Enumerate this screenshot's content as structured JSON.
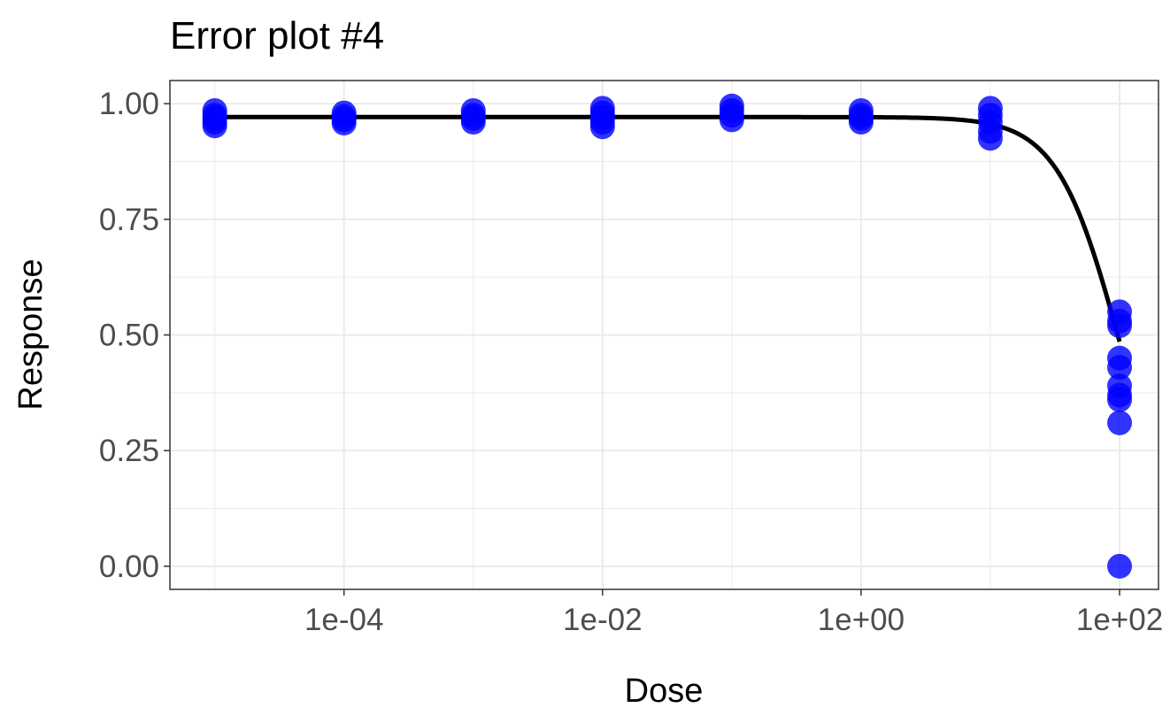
{
  "chart_data": {
    "type": "scatter",
    "title": "Error plot #4",
    "xlabel": "Dose",
    "ylabel": "Response",
    "x_scale": "log10",
    "xlim": [
      4.5e-06,
      200
    ],
    "ylim": [
      -0.05,
      1.05
    ],
    "grid": true,
    "legend": "none",
    "x_ticks": [
      {
        "value": 0.0001,
        "label": "1e-04"
      },
      {
        "value": 0.01,
        "label": "1e-02"
      },
      {
        "value": 1,
        "label": "1e+00"
      },
      {
        "value": 100,
        "label": "1e+02"
      }
    ],
    "y_ticks": [
      {
        "value": 0.0,
        "label": "0.00"
      },
      {
        "value": 0.25,
        "label": "0.25"
      },
      {
        "value": 0.5,
        "label": "0.50"
      },
      {
        "value": 0.75,
        "label": "0.75"
      },
      {
        "value": 1.0,
        "label": "1.00"
      }
    ],
    "points": [
      {
        "x": 1e-05,
        "y": 0.985
      },
      {
        "x": 1e-05,
        "y": 0.975
      },
      {
        "x": 1e-05,
        "y": 0.968
      },
      {
        "x": 1e-05,
        "y": 0.96
      },
      {
        "x": 1e-05,
        "y": 0.952
      },
      {
        "x": 0.0001,
        "y": 0.98
      },
      {
        "x": 0.0001,
        "y": 0.972
      },
      {
        "x": 0.0001,
        "y": 0.965
      },
      {
        "x": 0.0001,
        "y": 0.958
      },
      {
        "x": 0.001,
        "y": 0.985
      },
      {
        "x": 0.001,
        "y": 0.975
      },
      {
        "x": 0.001,
        "y": 0.968
      },
      {
        "x": 0.001,
        "y": 0.96
      },
      {
        "x": 0.01,
        "y": 0.99
      },
      {
        "x": 0.01,
        "y": 0.98
      },
      {
        "x": 0.01,
        "y": 0.97
      },
      {
        "x": 0.01,
        "y": 0.96
      },
      {
        "x": 0.01,
        "y": 0.95
      },
      {
        "x": 0.1,
        "y": 0.995
      },
      {
        "x": 0.1,
        "y": 0.985
      },
      {
        "x": 0.1,
        "y": 0.975
      },
      {
        "x": 0.1,
        "y": 0.965
      },
      {
        "x": 1,
        "y": 0.985
      },
      {
        "x": 1,
        "y": 0.975
      },
      {
        "x": 1,
        "y": 0.968
      },
      {
        "x": 1,
        "y": 0.96
      },
      {
        "x": 10,
        "y": 0.99
      },
      {
        "x": 10,
        "y": 0.975
      },
      {
        "x": 10,
        "y": 0.96
      },
      {
        "x": 10,
        "y": 0.94
      },
      {
        "x": 10,
        "y": 0.925
      },
      {
        "x": 100,
        "y": 0.55
      },
      {
        "x": 100,
        "y": 0.53
      },
      {
        "x": 100,
        "y": 0.52
      },
      {
        "x": 100,
        "y": 0.45
      },
      {
        "x": 100,
        "y": 0.43
      },
      {
        "x": 100,
        "y": 0.39
      },
      {
        "x": 100,
        "y": 0.37
      },
      {
        "x": 100,
        "y": 0.36
      },
      {
        "x": 100,
        "y": 0.31
      },
      {
        "x": 100,
        "y": 0.0
      }
    ],
    "fit_curve": {
      "model": "4-parameter log-logistic",
      "top": 0.971,
      "bottom": 0.0,
      "ec50": 100,
      "hill": 1.8,
      "x_range": [
        1e-05,
        100
      ]
    },
    "colors": {
      "points": "#0000ff",
      "curve": "#000000",
      "grid": "#ebebeb",
      "panel_border": "#333333",
      "tick_label": "#4d4d4d"
    }
  }
}
